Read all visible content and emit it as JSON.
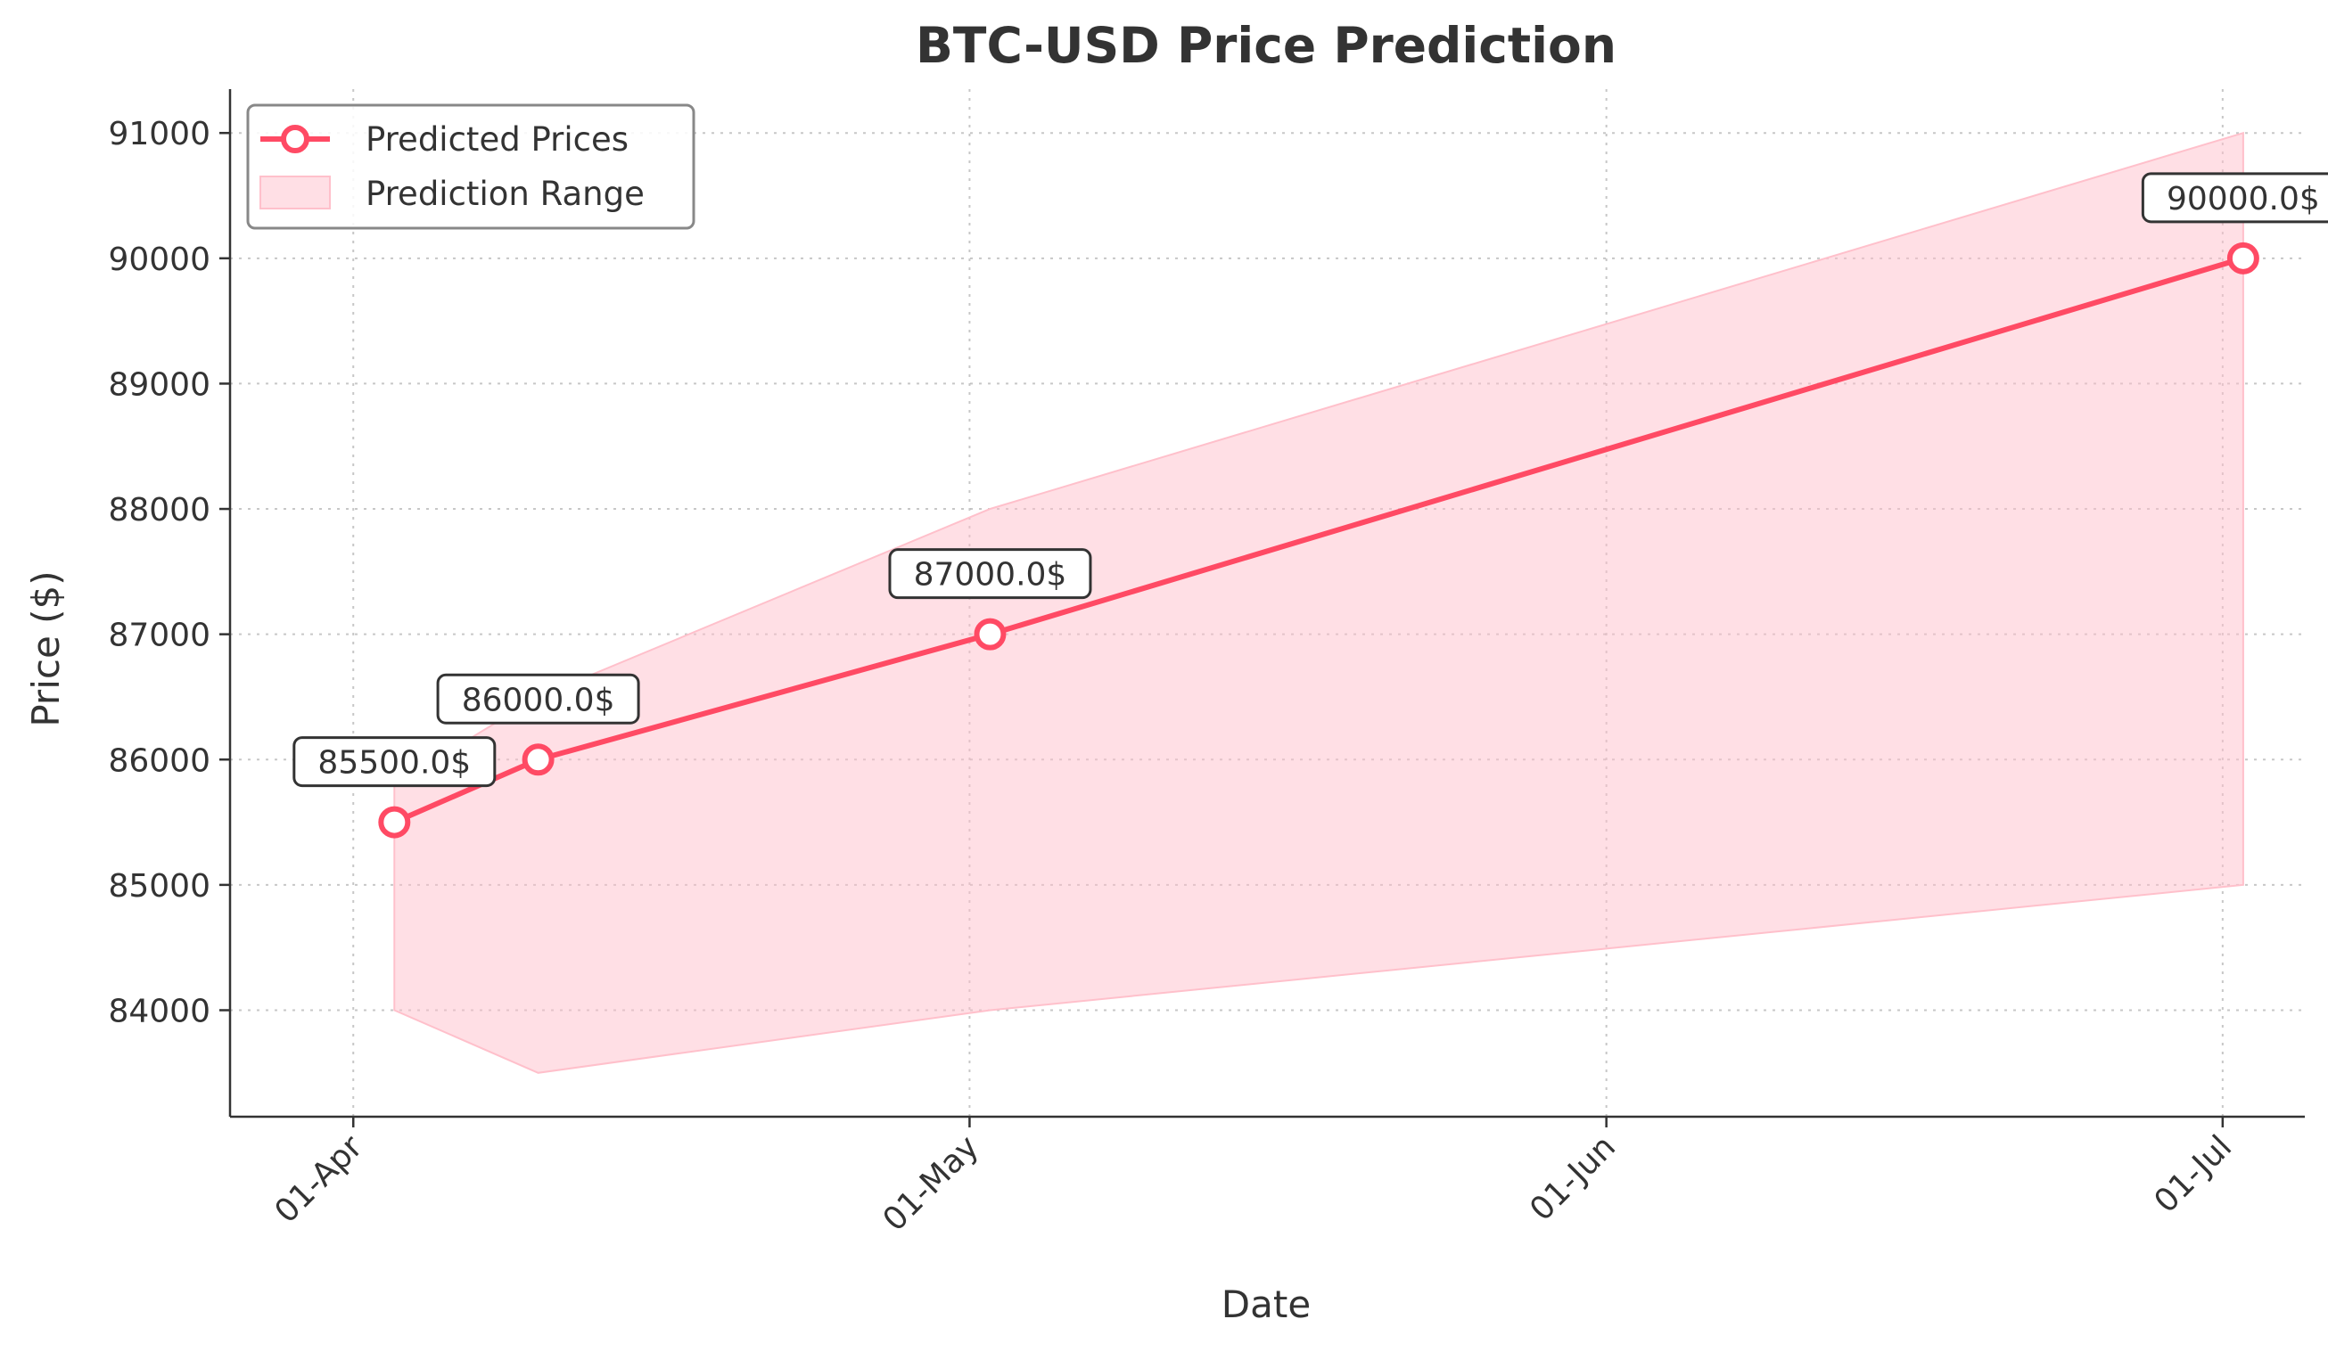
{
  "chart_data": {
    "type": "line",
    "title": "BTC-USD Price Prediction",
    "xlabel": "Date",
    "ylabel": "Price ($)",
    "ylim": [
      83150,
      91350
    ],
    "xlim": [
      "2025-03-26",
      "2025-07-05"
    ],
    "grid": true,
    "legend_position": "top-left",
    "colors": {
      "line": "#FF4A64",
      "band": "#FFC0CB",
      "text": "#333333"
    },
    "x_ticks": [
      {
        "date": "2025-04-01",
        "label": "01-Apr"
      },
      {
        "date": "2025-05-01",
        "label": "01-May"
      },
      {
        "date": "2025-06-01",
        "label": "01-Jun"
      },
      {
        "date": "2025-07-01",
        "label": "01-Jul"
      }
    ],
    "y_ticks": [
      84000,
      85000,
      86000,
      87000,
      88000,
      89000,
      90000,
      91000
    ],
    "series": [
      {
        "name": "Predicted Prices",
        "points": [
          {
            "x": "2025-04-03",
            "y": 85500
          },
          {
            "x": "2025-04-10",
            "y": 86000
          },
          {
            "x": "2025-05-02",
            "y": 87000
          },
          {
            "x": "2025-07-02",
            "y": 90000
          }
        ]
      }
    ],
    "band": {
      "name": "Prediction Range",
      "points": [
        {
          "x": "2025-04-03",
          "low": 84000,
          "high": 85800
        },
        {
          "x": "2025-04-10",
          "low": 83500,
          "high": 86500
        },
        {
          "x": "2025-05-02",
          "low": 84000,
          "high": 88000
        },
        {
          "x": "2025-07-02",
          "low": 85000,
          "high": 91000
        }
      ]
    },
    "annotations": [
      {
        "x": "2025-04-03",
        "y": 85500,
        "text": "85500.0$"
      },
      {
        "x": "2025-04-10",
        "y": 86000,
        "text": "86000.0$"
      },
      {
        "x": "2025-05-02",
        "y": 87000,
        "text": "87000.0$"
      },
      {
        "x": "2025-07-02",
        "y": 90000,
        "text": "90000.0$"
      }
    ]
  }
}
